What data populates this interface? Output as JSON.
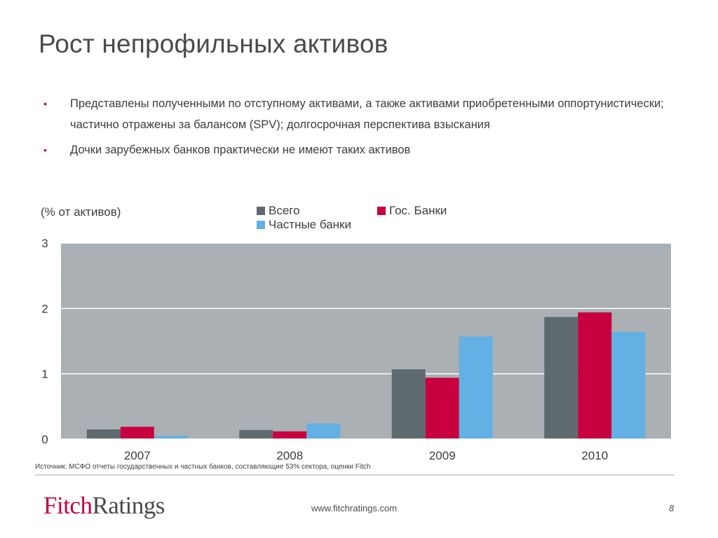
{
  "slide": {
    "title": "Рост непрофильных активов",
    "bullets": [
      "Представлены полученными по отступному активами, а также активами приобретенными оппортунистически; частично отражены за балансом (SPV);  долгосрочная перспектива взыскания",
      "Дочки зарубежных банков практически не имеют таких активов"
    ],
    "bullet_color": "#c8003f"
  },
  "chart_data": {
    "type": "bar",
    "ylabel": "(% от активов)",
    "categories": [
      "2007",
      "2008",
      "2009",
      "2010"
    ],
    "series": [
      {
        "name": "Всего",
        "color": "#5f6a70",
        "values": [
          0.15,
          0.14,
          1.07,
          1.87
        ]
      },
      {
        "name": "Гос. Банки",
        "color": "#c8003f",
        "values": [
          0.19,
          0.12,
          0.94,
          1.94
        ]
      },
      {
        "name": "Частные банки",
        "color": "#62b0e4",
        "values": [
          0.05,
          0.24,
          1.57,
          1.64
        ]
      }
    ],
    "ylim": [
      0,
      3
    ],
    "yticks": [
      "0",
      "1",
      "2",
      "3"
    ],
    "plot_background": "#aab0b4",
    "grid": true,
    "legend_position": "top"
  },
  "footer": {
    "source": "Источник: МСФО отчеты государственных и частных банков, составляющие 53% сектора, оценки Fitch",
    "logo_fitch": "Fitch",
    "logo_ratings": "Ratings",
    "url": "www.fitchratings.com",
    "page": "8"
  }
}
